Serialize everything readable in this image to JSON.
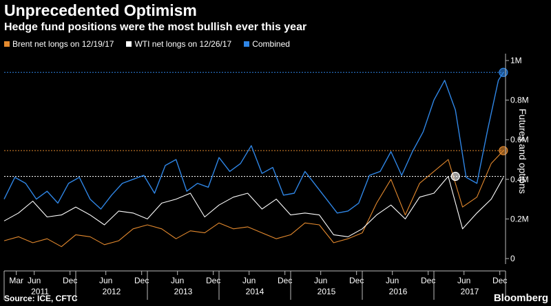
{
  "header": {
    "title": "Unprecedented Optimism",
    "subtitle": "Hedge fund positions were the most bullish ever this year"
  },
  "colors": {
    "background": "#000000",
    "brent": "#e58a2e",
    "wti": "#ffffff",
    "combined": "#2f86e6",
    "axis": "#bbbbbb"
  },
  "footer": {
    "source": "Source: ICE, CFTC",
    "brand": "Bloomberg"
  },
  "chart_data": {
    "type": "line",
    "ylabel": "Futures and options",
    "ylim": [
      0,
      1000000
    ],
    "y_ticks": [
      {
        "value": 0,
        "label": "0"
      },
      {
        "value": 200000,
        "label": "0.2M"
      },
      {
        "value": 400000,
        "label": "0.4M"
      },
      {
        "value": 600000,
        "label": "0.6M"
      },
      {
        "value": 800000,
        "label": "0.8M"
      },
      {
        "value": 1000000,
        "label": "1M"
      }
    ],
    "x_range": [
      "2011-01",
      "2018-01"
    ],
    "month_ticks": [
      {
        "label": "Mar",
        "t": 2011.17
      },
      {
        "label": "Jun",
        "t": 2011.42
      },
      {
        "label": "Dec",
        "t": 2011.92
      },
      {
        "label": "Jun",
        "t": 2012.42
      },
      {
        "label": "Dec",
        "t": 2012.92
      },
      {
        "label": "Jun",
        "t": 2013.42
      },
      {
        "label": "Dec",
        "t": 2013.92
      },
      {
        "label": "Jun",
        "t": 2014.42
      },
      {
        "label": "Dec",
        "t": 2014.92
      },
      {
        "label": "Jun",
        "t": 2015.42
      },
      {
        "label": "Dec",
        "t": 2015.92
      },
      {
        "label": "Jun",
        "t": 2016.42
      },
      {
        "label": "Dec",
        "t": 2016.92
      },
      {
        "label": "Jun",
        "t": 2017.42
      },
      {
        "label": "Dec",
        "t": 2017.92
      }
    ],
    "year_ticks": [
      {
        "label": "2011",
        "t": 2011.5
      },
      {
        "label": "2012",
        "t": 2012.5
      },
      {
        "label": "2013",
        "t": 2013.5
      },
      {
        "label": "2014",
        "t": 2014.5
      },
      {
        "label": "2015",
        "t": 2015.5
      },
      {
        "label": "2016",
        "t": 2016.5
      },
      {
        "label": "2017",
        "t": 2017.5
      }
    ],
    "reference_lines": [
      {
        "series": "Combined",
        "value": 940000
      },
      {
        "series": "Brent",
        "value": 545000
      },
      {
        "series": "WTI",
        "value": 415000
      }
    ],
    "series": [
      {
        "name": "Brent net longs on 12/19/17",
        "key": "brent",
        "x": [
          2011.0,
          2011.2,
          2011.4,
          2011.6,
          2011.8,
          2012.0,
          2012.2,
          2012.4,
          2012.6,
          2012.8,
          2013.0,
          2013.2,
          2013.4,
          2013.6,
          2013.8,
          2014.0,
          2014.2,
          2014.4,
          2014.6,
          2014.8,
          2015.0,
          2015.2,
          2015.4,
          2015.6,
          2015.8,
          2016.0,
          2016.2,
          2016.4,
          2016.6,
          2016.8,
          2017.0,
          2017.2,
          2017.4,
          2017.6,
          2017.8,
          2017.97
        ],
        "values": [
          90000,
          110000,
          80000,
          100000,
          60000,
          120000,
          110000,
          70000,
          90000,
          150000,
          170000,
          150000,
          100000,
          140000,
          130000,
          180000,
          150000,
          160000,
          130000,
          100000,
          120000,
          180000,
          170000,
          80000,
          100000,
          130000,
          280000,
          400000,
          220000,
          380000,
          440000,
          500000,
          260000,
          310000,
          480000,
          545000
        ],
        "endpoint": {
          "x": 2017.97,
          "value": 545000
        }
      },
      {
        "name": "WTI net longs on 12/26/17",
        "key": "wti",
        "x": [
          2011.0,
          2011.2,
          2011.4,
          2011.6,
          2011.8,
          2012.0,
          2012.2,
          2012.4,
          2012.6,
          2012.8,
          2013.0,
          2013.2,
          2013.4,
          2013.6,
          2013.8,
          2014.0,
          2014.2,
          2014.4,
          2014.6,
          2014.8,
          2015.0,
          2015.2,
          2015.4,
          2015.6,
          2015.8,
          2016.0,
          2016.2,
          2016.4,
          2016.6,
          2016.8,
          2017.0,
          2017.2,
          2017.4,
          2017.6,
          2017.8,
          2017.97
        ],
        "values": [
          190000,
          230000,
          290000,
          210000,
          220000,
          260000,
          220000,
          170000,
          240000,
          230000,
          200000,
          280000,
          300000,
          330000,
          210000,
          270000,
          310000,
          330000,
          250000,
          300000,
          220000,
          230000,
          220000,
          120000,
          110000,
          150000,
          220000,
          270000,
          200000,
          310000,
          330000,
          415000,
          150000,
          230000,
          300000,
          410000
        ],
        "endpoint": {
          "x": 2017.3,
          "value": 415000
        }
      },
      {
        "name": "Combined",
        "key": "combined",
        "x": [
          2011.0,
          2011.15,
          2011.3,
          2011.45,
          2011.6,
          2011.75,
          2011.9,
          2012.05,
          2012.2,
          2012.35,
          2012.5,
          2012.65,
          2012.8,
          2012.95,
          2013.1,
          2013.25,
          2013.4,
          2013.55,
          2013.7,
          2013.85,
          2014.0,
          2014.15,
          2014.3,
          2014.45,
          2014.6,
          2014.75,
          2014.9,
          2015.05,
          2015.2,
          2015.35,
          2015.5,
          2015.65,
          2015.8,
          2015.95,
          2016.1,
          2016.25,
          2016.4,
          2016.55,
          2016.7,
          2016.85,
          2017.0,
          2017.15,
          2017.3,
          2017.45,
          2017.6,
          2017.75,
          2017.9,
          2017.97
        ],
        "values": [
          300000,
          410000,
          380000,
          300000,
          340000,
          280000,
          380000,
          410000,
          300000,
          250000,
          320000,
          380000,
          400000,
          420000,
          330000,
          470000,
          500000,
          340000,
          380000,
          360000,
          510000,
          440000,
          480000,
          570000,
          430000,
          460000,
          320000,
          330000,
          440000,
          370000,
          300000,
          230000,
          240000,
          280000,
          420000,
          440000,
          540000,
          420000,
          540000,
          640000,
          800000,
          900000,
          750000,
          410000,
          380000,
          650000,
          900000,
          940000
        ],
        "endpoint": {
          "x": 2017.97,
          "value": 940000
        }
      }
    ]
  }
}
